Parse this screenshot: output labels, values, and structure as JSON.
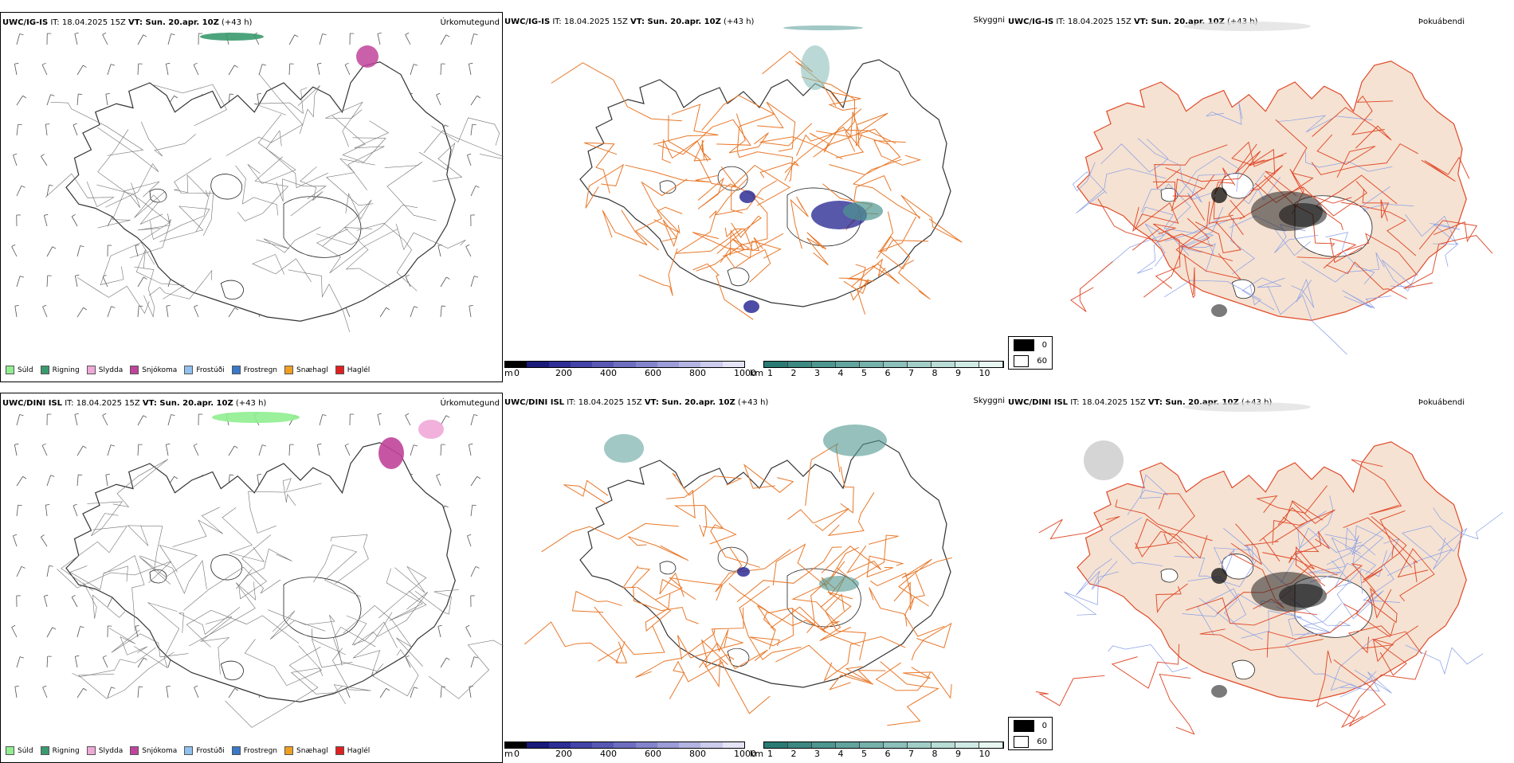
{
  "rows": [
    {
      "model": "UWC/IG-IS",
      "it_label": "IT: 18.04.2025 15Z",
      "vt_label": "VT: Sun. 20.apr. 10Z",
      "lead": "(+43 h)",
      "left_title": "Úrkomutegund",
      "mid_title": "Skyggni",
      "right_title": "Þokuábendi"
    },
    {
      "model": "UWC/DINI ISL",
      "it_label": "IT: 18.04.2025 15Z",
      "vt_label": "VT: Sun. 20.apr. 10Z",
      "lead": "(+43 h)",
      "left_title": "Úrkomutegund",
      "mid_title": "Skyggni",
      "right_title": "Þokuábendi"
    }
  ],
  "precip_legend": [
    {
      "label": "Súld",
      "color": "#90ee90"
    },
    {
      "label": "Rigning",
      "color": "#3a9a6e"
    },
    {
      "label": "Slydda",
      "color": "#f0a8d8"
    },
    {
      "label": "Snjókoma",
      "color": "#c0449a"
    },
    {
      "label": "Frostúði",
      "color": "#8fc0ee"
    },
    {
      "label": "Frostregn",
      "color": "#3a78c8"
    },
    {
      "label": "Snæhagl",
      "color": "#f0a020"
    },
    {
      "label": "Haglél",
      "color": "#e02020"
    }
  ],
  "ceiling_scale": {
    "unit": "m",
    "ticks": [
      "0",
      "200",
      "400",
      "600",
      "800",
      "1000"
    ],
    "colors": [
      "#000000",
      "#1a1a7a",
      "#2e2e96",
      "#4444a8",
      "#5858b4",
      "#6e6ec0",
      "#8484cc",
      "#9c9cd8",
      "#b4b4e2",
      "#ccccec",
      "#e4e4f6"
    ]
  },
  "visibility_scale": {
    "unit": "km",
    "ticks": [
      "1",
      "2",
      "3",
      "4",
      "5",
      "6",
      "7",
      "8",
      "9",
      "10"
    ],
    "colors": [
      "#2a7a74",
      "#3c8882",
      "#4e9690",
      "#62a49e",
      "#76b2ac",
      "#8cc0ba",
      "#a2cec8",
      "#b8dcd6",
      "#d0eae4",
      "#e8f6f2"
    ]
  },
  "fog_key": [
    {
      "label": "0",
      "color": "#000000"
    },
    {
      "label": "60",
      "color": "#ffffff"
    }
  ],
  "colors": {
    "land_fill": "#f5e2d2",
    "road_orange": "#e8782a",
    "road_red": "#e04a2a",
    "river_blue": "#8aa0e8",
    "outline": "#333333"
  }
}
